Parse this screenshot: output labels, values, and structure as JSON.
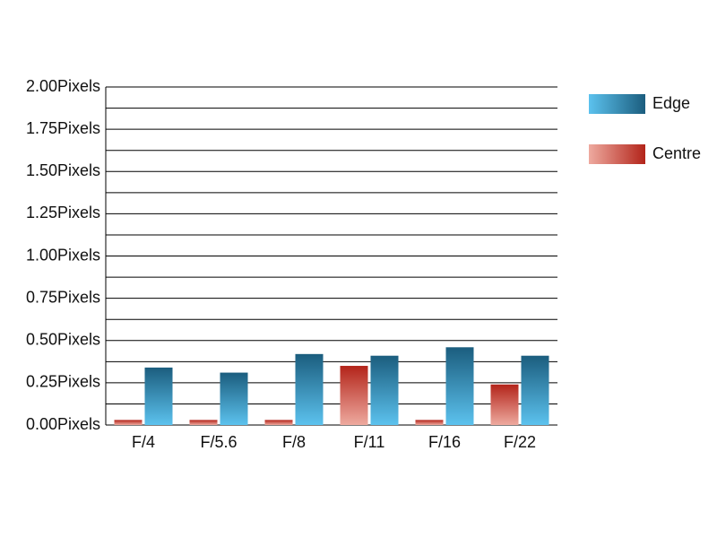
{
  "chart_data": {
    "type": "bar",
    "categories": [
      "F/4",
      "F/5.6",
      "F/8",
      "F/11",
      "F/16",
      "F/22"
    ],
    "series": [
      {
        "name": "Edge",
        "color": "#1b5d7e",
        "color_light": "#5cc2ee",
        "values": [
          0.34,
          0.31,
          0.42,
          0.41,
          0.46,
          0.41
        ]
      },
      {
        "name": "Centre",
        "color": "#b3241a",
        "color_light": "#eeaa9f",
        "values": [
          0.03,
          0.03,
          0.03,
          0.35,
          0.03,
          0.24
        ]
      }
    ],
    "ylim": [
      0,
      2
    ],
    "yticks": [
      {
        "value": 0,
        "label": "0.00Pixels"
      },
      {
        "value": 0.25,
        "label": "0.25Pixels"
      },
      {
        "value": 0.5,
        "label": "0.50Pixels"
      },
      {
        "value": 0.75,
        "label": "0.75Pixels"
      },
      {
        "value": 1,
        "label": "1.00Pixels"
      },
      {
        "value": 1.25,
        "label": "1.25Pixels"
      },
      {
        "value": 1.5,
        "label": "1.50Pixels"
      },
      {
        "value": 1.75,
        "label": "1.75Pixels"
      },
      {
        "value": 2,
        "label": "2.00Pixels"
      }
    ],
    "y_minor_ticks": [
      0.125,
      0.375,
      0.625,
      0.875,
      1.125,
      1.375,
      1.625,
      1.875
    ],
    "grid": true,
    "legend": "right"
  }
}
